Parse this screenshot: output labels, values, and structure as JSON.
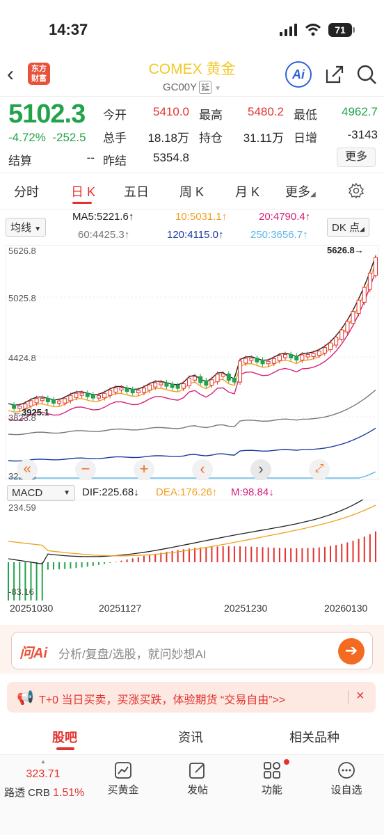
{
  "status_bar": {
    "time": "14:37",
    "battery": "71"
  },
  "header": {
    "logo": "东方财富",
    "title": "COMEX 黄金",
    "code": "GC00Y",
    "code_tag": "延",
    "ai_label": "Ai"
  },
  "quote": {
    "price": "5102.3",
    "change_pct": "-4.72%",
    "change": "-252.5",
    "fields": [
      {
        "label": "今开",
        "value": "5410.0",
        "color": "red"
      },
      {
        "label": "最高",
        "value": "5480.2",
        "color": "red"
      },
      {
        "label": "最低",
        "value": "4962.7",
        "color": "green"
      },
      {
        "label": "总手",
        "value": "18.18万",
        "color": "black"
      },
      {
        "label": "持仓",
        "value": "31.11万",
        "color": "black"
      },
      {
        "label": "日增",
        "value": "-3143",
        "color": "black"
      },
      {
        "label": "结算",
        "value": "--",
        "color": "black"
      },
      {
        "label": "昨结",
        "value": "5354.8",
        "color": "black"
      }
    ],
    "more": "更多"
  },
  "tabs": [
    "分时",
    "日 K",
    "五日",
    "周 K",
    "月 K",
    "更多"
  ],
  "active_tab": "日 K",
  "ma": {
    "selector": "均线",
    "dk": "DK 点",
    "items": [
      {
        "text": "MA5:5221.6",
        "arrow": "↑",
        "color": "#222222"
      },
      {
        "text": "10:5031.1",
        "arrow": "↑",
        "color": "#f0a020"
      },
      {
        "text": "20:4790.4",
        "arrow": "↑",
        "color": "#d6207a"
      },
      {
        "text": "60:4425.3",
        "arrow": "↑",
        "color": "#777777"
      },
      {
        "text": "120:4115.0",
        "arrow": "↑",
        "color": "#1b3aa0"
      },
      {
        "text": "250:3656.7",
        "arrow": "↑",
        "color": "#5ab7e8"
      }
    ]
  },
  "chart_data": {
    "type": "candlestick",
    "y_ticks": [
      "5626.8",
      "5025.8",
      "4424.8",
      "3823.8",
      "3222.8"
    ],
    "ylim": [
      3222.8,
      5626.8
    ],
    "max_label": "5626.8",
    "min_label": "3925.1",
    "x_ticks": [
      "20251030",
      "20251127",
      "20251230",
      "20260130"
    ],
    "macd": {
      "selector": "MACD",
      "dif": "DIF:225.68",
      "dif_arrow": "↓",
      "dea": "DEA:176.26",
      "dea_arrow": "↑",
      "m": "M:98.84",
      "m_arrow": "↓",
      "y_top": "234.59",
      "y_bottom": "-83.16"
    }
  },
  "ai_bar": {
    "logo": "问Ai",
    "placeholder": "分析/复盘/选股，就问妙想AI"
  },
  "promo": {
    "text": "T+0 当日买卖，买涨买跌，体验期货 “交易自由”>>",
    "close": "×"
  },
  "sub_tabs": [
    "股吧",
    "资讯",
    "相关品种"
  ],
  "bottom_nav": {
    "index_value": "323.71",
    "index_name": "路透 CRB",
    "index_pct": "1.51%",
    "items": [
      "买黄金",
      "发帖",
      "功能",
      "设自选"
    ]
  },
  "colors": {
    "up": "#e2322f",
    "down": "#22a34a",
    "accent": "#e2322f"
  }
}
